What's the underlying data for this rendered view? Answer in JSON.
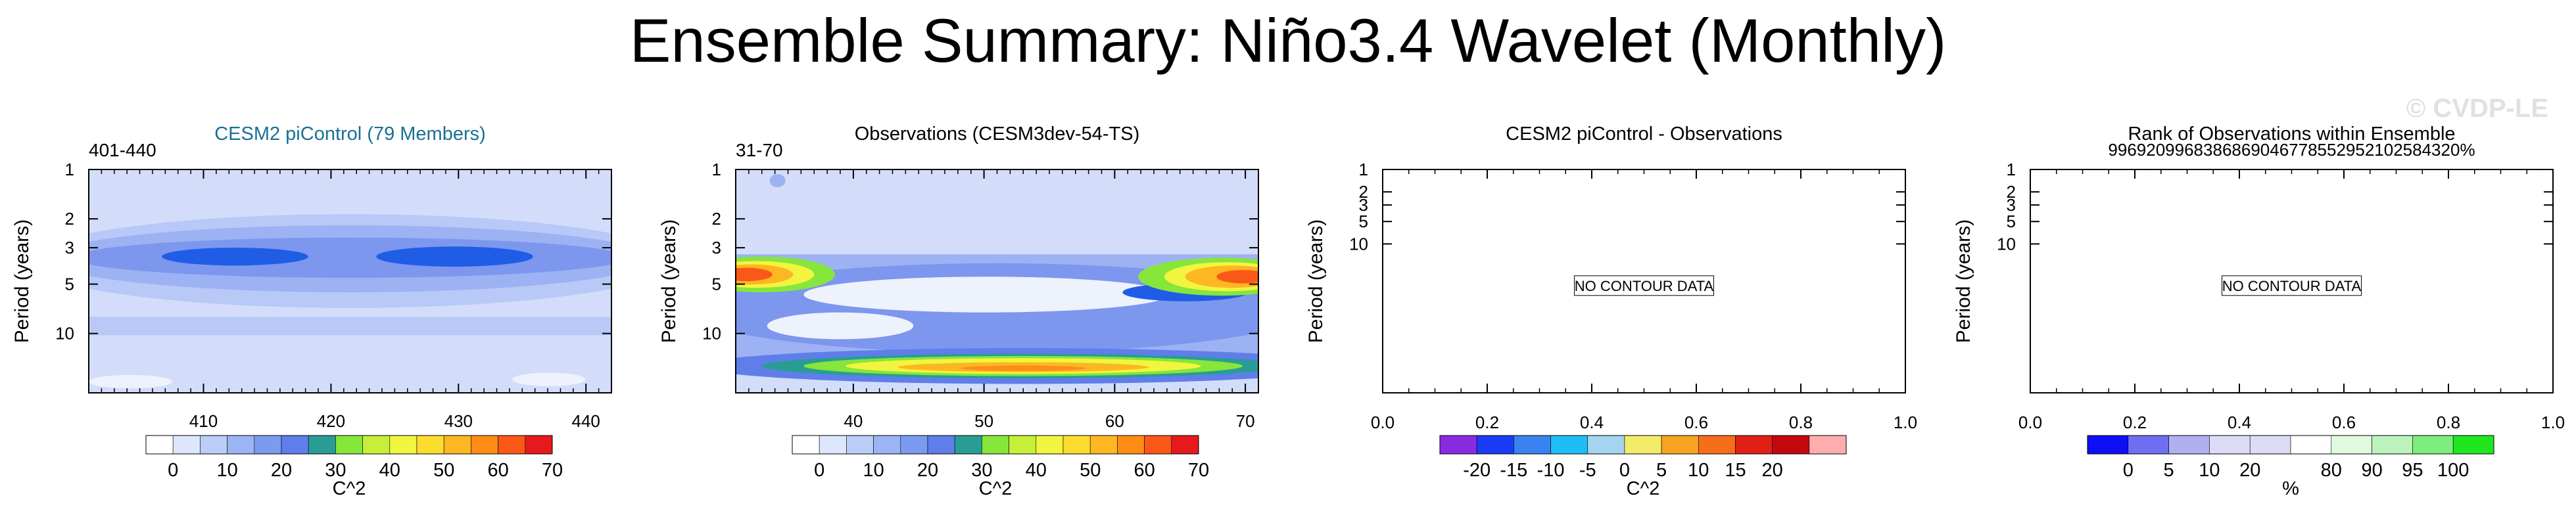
{
  "figure_title": "Ensemble Summary: Niño3.4 Wavelet (Monthly)",
  "watermark": "© CVDP-LE",
  "chart_data": [
    {
      "type": "heatmap",
      "id": "p1",
      "title": "CESM2 piControl (79 Members)",
      "title_color": "#1a6f94",
      "left_label": "401-440",
      "ylabel": "Period (years)",
      "y_scale": "log",
      "ylim": [
        1,
        23
      ],
      "y_ticks": [
        1,
        2,
        3,
        5,
        10
      ],
      "xlim": [
        401,
        442
      ],
      "x_ticks": [
        410,
        420,
        430,
        440
      ],
      "colorbar": {
        "colors": [
          "#ffffff",
          "#dde6fb",
          "#bccdf7",
          "#9bb4f3",
          "#7a9bef",
          "#5f7ee9",
          "#2a9c96",
          "#86e63a",
          "#c6ef3a",
          "#f2f540",
          "#fddc30",
          "#fdb722",
          "#fd8d17",
          "#fa5818",
          "#e6191c"
        ],
        "labels": [
          "0",
          "10",
          "20",
          "30",
          "40",
          "50",
          "60",
          "70"
        ],
        "unit": "C^2"
      }
    },
    {
      "type": "heatmap",
      "id": "p2",
      "title": "Observations (CESM3dev-54-TS)",
      "title_color": "#000000",
      "left_label": "31-70",
      "ylabel": "Period (years)",
      "y_scale": "log",
      "ylim": [
        1,
        23
      ],
      "y_ticks": [
        1,
        2,
        3,
        5,
        10
      ],
      "xlim": [
        31,
        71
      ],
      "x_ticks": [
        40,
        50,
        60,
        70
      ],
      "colorbar": {
        "colors": [
          "#ffffff",
          "#dde6fb",
          "#bccdf7",
          "#9bb4f3",
          "#7a9bef",
          "#5f7ee9",
          "#2a9c96",
          "#86e63a",
          "#c6ef3a",
          "#f2f540",
          "#fddc30",
          "#fdb722",
          "#fd8d17",
          "#fa5818",
          "#e6191c"
        ],
        "labels": [
          "0",
          "10",
          "20",
          "30",
          "40",
          "50",
          "60",
          "70"
        ],
        "unit": "C^2"
      }
    },
    {
      "type": "heatmap",
      "id": "p3",
      "title": "CESM2 piControl - Observations",
      "title_color": "#000000",
      "ylabel": "Period (years)",
      "y_scale": "log",
      "ylim": [
        1,
        1000
      ],
      "y_ticks": [
        1,
        2,
        3,
        5,
        10
      ],
      "xlim": [
        0,
        1
      ],
      "x_ticks": [
        "0.0",
        "0.2",
        "0.4",
        "0.6",
        "0.8",
        "1.0"
      ],
      "no_data_text": "NO CONTOUR DATA",
      "colorbar": {
        "colors": [
          "#8a2be2",
          "#1a3cf5",
          "#3a82f0",
          "#1ebef5",
          "#a5d4f0",
          "#f2ec6a",
          "#f7a324",
          "#f56e1b",
          "#e02015",
          "#c5080e",
          "#ffaeb0"
        ],
        "labels": [
          "-20",
          "-15",
          "-10",
          "-5",
          "0",
          "5",
          "10",
          "15",
          "20"
        ],
        "unit": "C^2"
      }
    },
    {
      "type": "heatmap",
      "id": "p4",
      "title": "Rank of Observations within Ensemble",
      "subtitle": "99692099683868690467785529521025843",
      "right_label": "20%",
      "title_color": "#000000",
      "ylabel": "Period (years)",
      "y_scale": "log",
      "ylim": [
        1,
        1000
      ],
      "y_ticks": [
        1,
        2,
        3,
        5,
        10
      ],
      "xlim": [
        0,
        1
      ],
      "x_ticks": [
        "0.0",
        "0.2",
        "0.4",
        "0.6",
        "0.8",
        "1.0"
      ],
      "no_data_text": "NO CONTOUR DATA",
      "colorbar": {
        "colors": [
          "#0f0ff5",
          "#6e6ef2",
          "#b0b0f0",
          "#dcdcf7",
          "#dcdcf7",
          "#ffffff",
          "#e0fae0",
          "#bdf2bd",
          "#7eec7e",
          "#1fe61f"
        ],
        "labels": [
          "0",
          "5",
          "10",
          "20",
          "80",
          "90",
          "95",
          "100"
        ],
        "unit": "%"
      }
    }
  ]
}
